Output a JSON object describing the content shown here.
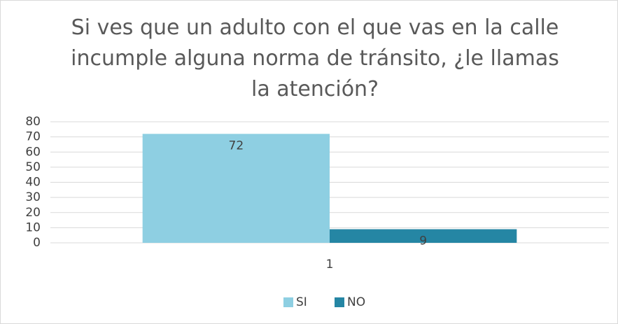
{
  "chart_data": {
    "type": "bar",
    "title": "Si ves que un adulto con el que vas en la calle incumple alguna norma de tránsito, ¿le llamas la atención?",
    "categories": [
      "1"
    ],
    "series": [
      {
        "name": "SI",
        "color": "#8ecfe2",
        "values": [
          72
        ]
      },
      {
        "name": "NO",
        "color": "#2586a4",
        "values": [
          9
        ]
      }
    ],
    "ylim": [
      0,
      80
    ],
    "yticks": [
      0,
      10,
      20,
      30,
      40,
      50,
      60,
      70,
      80
    ],
    "grid": true,
    "legend": "bottom"
  }
}
